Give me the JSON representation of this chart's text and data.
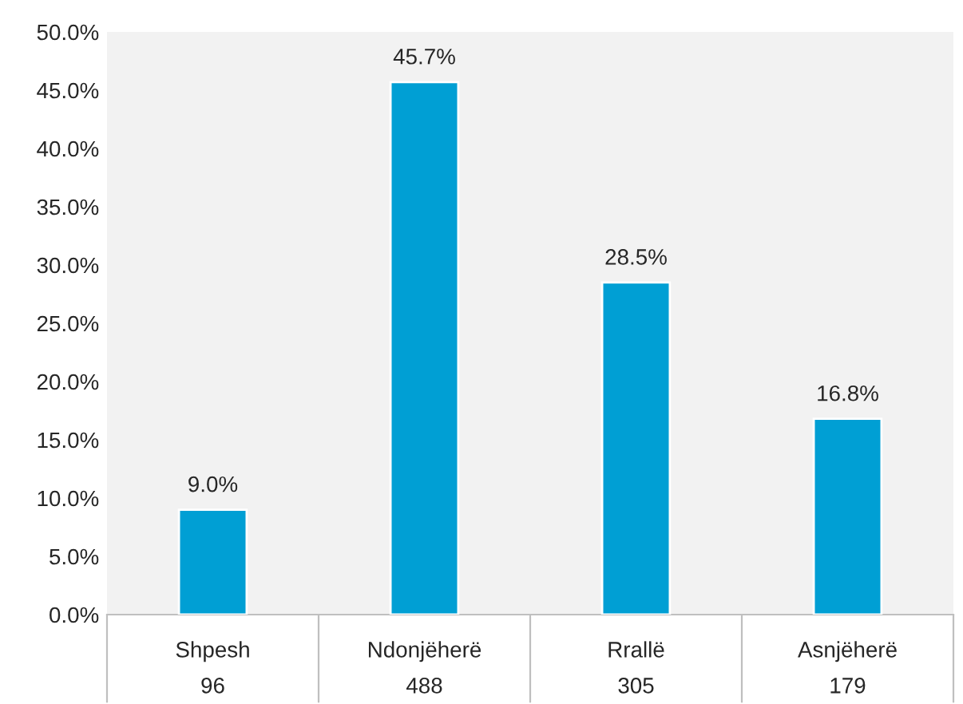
{
  "chart_data": {
    "type": "bar",
    "categories": [
      "Shpesh",
      "Ndonjëherë",
      "Rrallë",
      "Asnjëherë"
    ],
    "values": [
      9.0,
      45.7,
      28.5,
      16.8
    ],
    "color": "#009fd4",
    "ylim": [
      0,
      50
    ],
    "yticks": [
      {
        "value": 0,
        "label": "0.0%"
      },
      {
        "value": 5,
        "label": "5.0%"
      },
      {
        "value": 10,
        "label": "10.0%"
      },
      {
        "value": 15,
        "label": "15.0%"
      },
      {
        "value": 20,
        "label": "20.0%"
      },
      {
        "value": 25,
        "label": "25.0%"
      },
      {
        "value": 30,
        "label": "30.0%"
      },
      {
        "value": 35,
        "label": "35.0%"
      },
      {
        "value": 40,
        "label": "40.0%"
      },
      {
        "value": 45,
        "label": "45.0%"
      },
      {
        "value": 50,
        "label": "50.0%"
      }
    ],
    "value_labels": [
      "9.0%",
      "45.7%",
      "28.5%",
      "16.8%"
    ],
    "annotations": [
      "96",
      "488",
      "305",
      "179"
    ],
    "grid": false
  }
}
